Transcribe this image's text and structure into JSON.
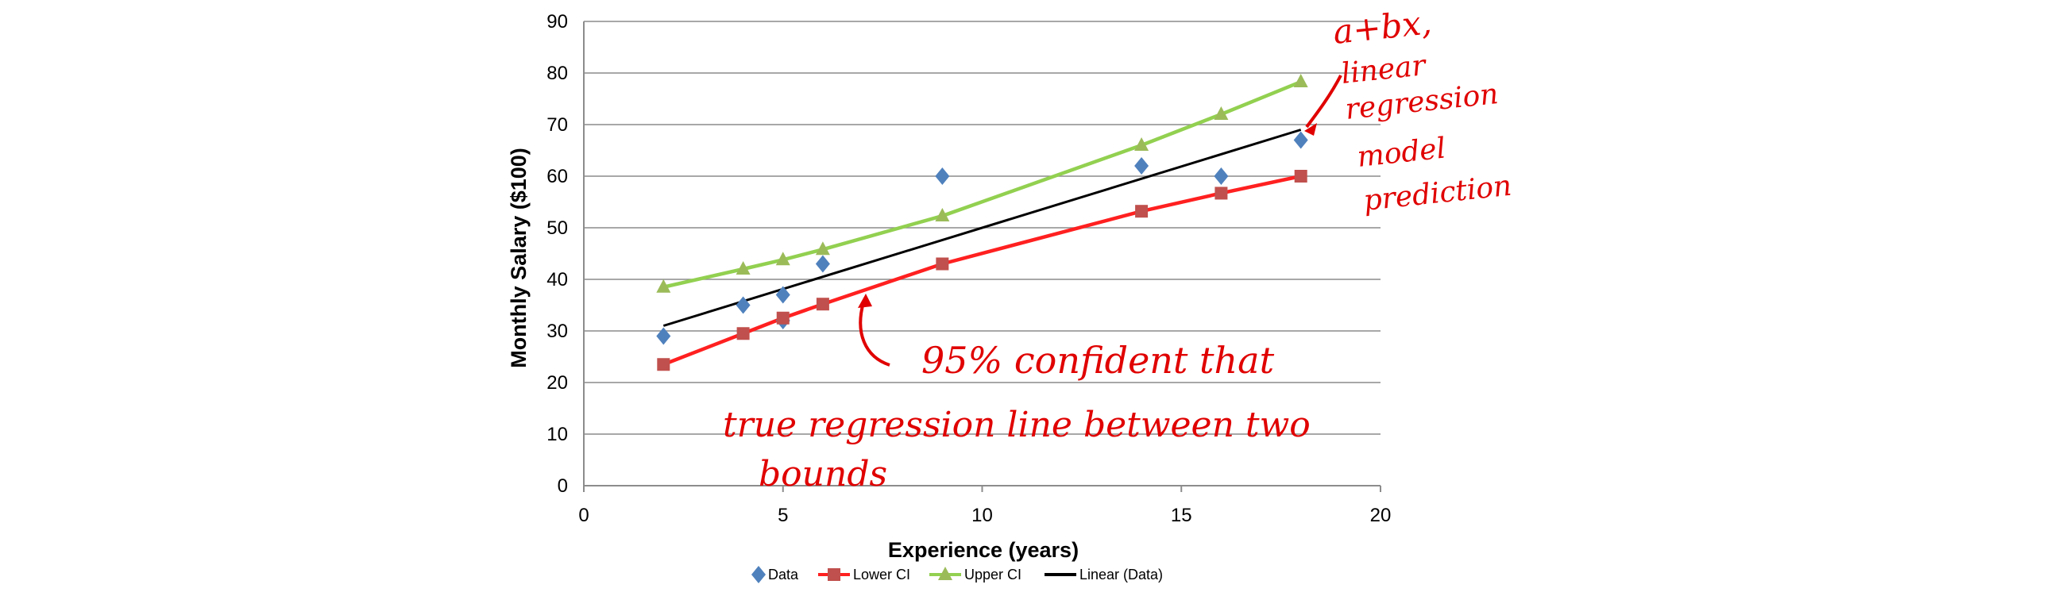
{
  "chart_data": {
    "type": "scatter",
    "xlabel": "Experience (years)",
    "ylabel": "Monthly Salary ($100)",
    "xlim": [
      0,
      20
    ],
    "ylim": [
      0,
      90
    ],
    "xticks": [
      0,
      5,
      10,
      15,
      20
    ],
    "yticks": [
      0,
      10,
      20,
      30,
      40,
      50,
      60,
      70,
      80,
      90
    ],
    "grid": "horizontal",
    "legend_position": "bottom",
    "series": [
      {
        "name": "Data",
        "kind": "markers",
        "marker": "diamond",
        "color": "#4f81bd",
        "x": [
          2,
          4,
          5,
          5,
          6,
          9,
          14,
          16,
          18
        ],
        "y": [
          29,
          35,
          37,
          32,
          43,
          60,
          62,
          60,
          67
        ]
      },
      {
        "name": "Lower CI",
        "kind": "line-markers",
        "marker": "square",
        "color": "#c0504d",
        "line_color": "#ff2020",
        "x": [
          2,
          4,
          5,
          6,
          9,
          14,
          16,
          18
        ],
        "y": [
          23.5,
          29.5,
          32.5,
          35.2,
          43,
          53.2,
          56.7,
          60
        ]
      },
      {
        "name": "Upper CI",
        "kind": "line-markers",
        "marker": "triangle",
        "color": "#9bbb59",
        "line_color": "#92d050",
        "x": [
          2,
          4,
          5,
          6,
          9,
          14,
          16,
          18
        ],
        "y": [
          38.5,
          42,
          43.8,
          45.8,
          52.3,
          66,
          72,
          78.3
        ]
      },
      {
        "name": "Linear (Data)",
        "kind": "line",
        "color": "#000000",
        "x": [
          2,
          18
        ],
        "y": [
          31,
          69
        ]
      }
    ]
  },
  "annotations": {
    "model_note": [
      "a+bx,",
      "linear",
      "regression",
      "model",
      "prediction"
    ],
    "ci_note": [
      "95% confident that",
      "true regression line between two",
      "bounds"
    ]
  }
}
